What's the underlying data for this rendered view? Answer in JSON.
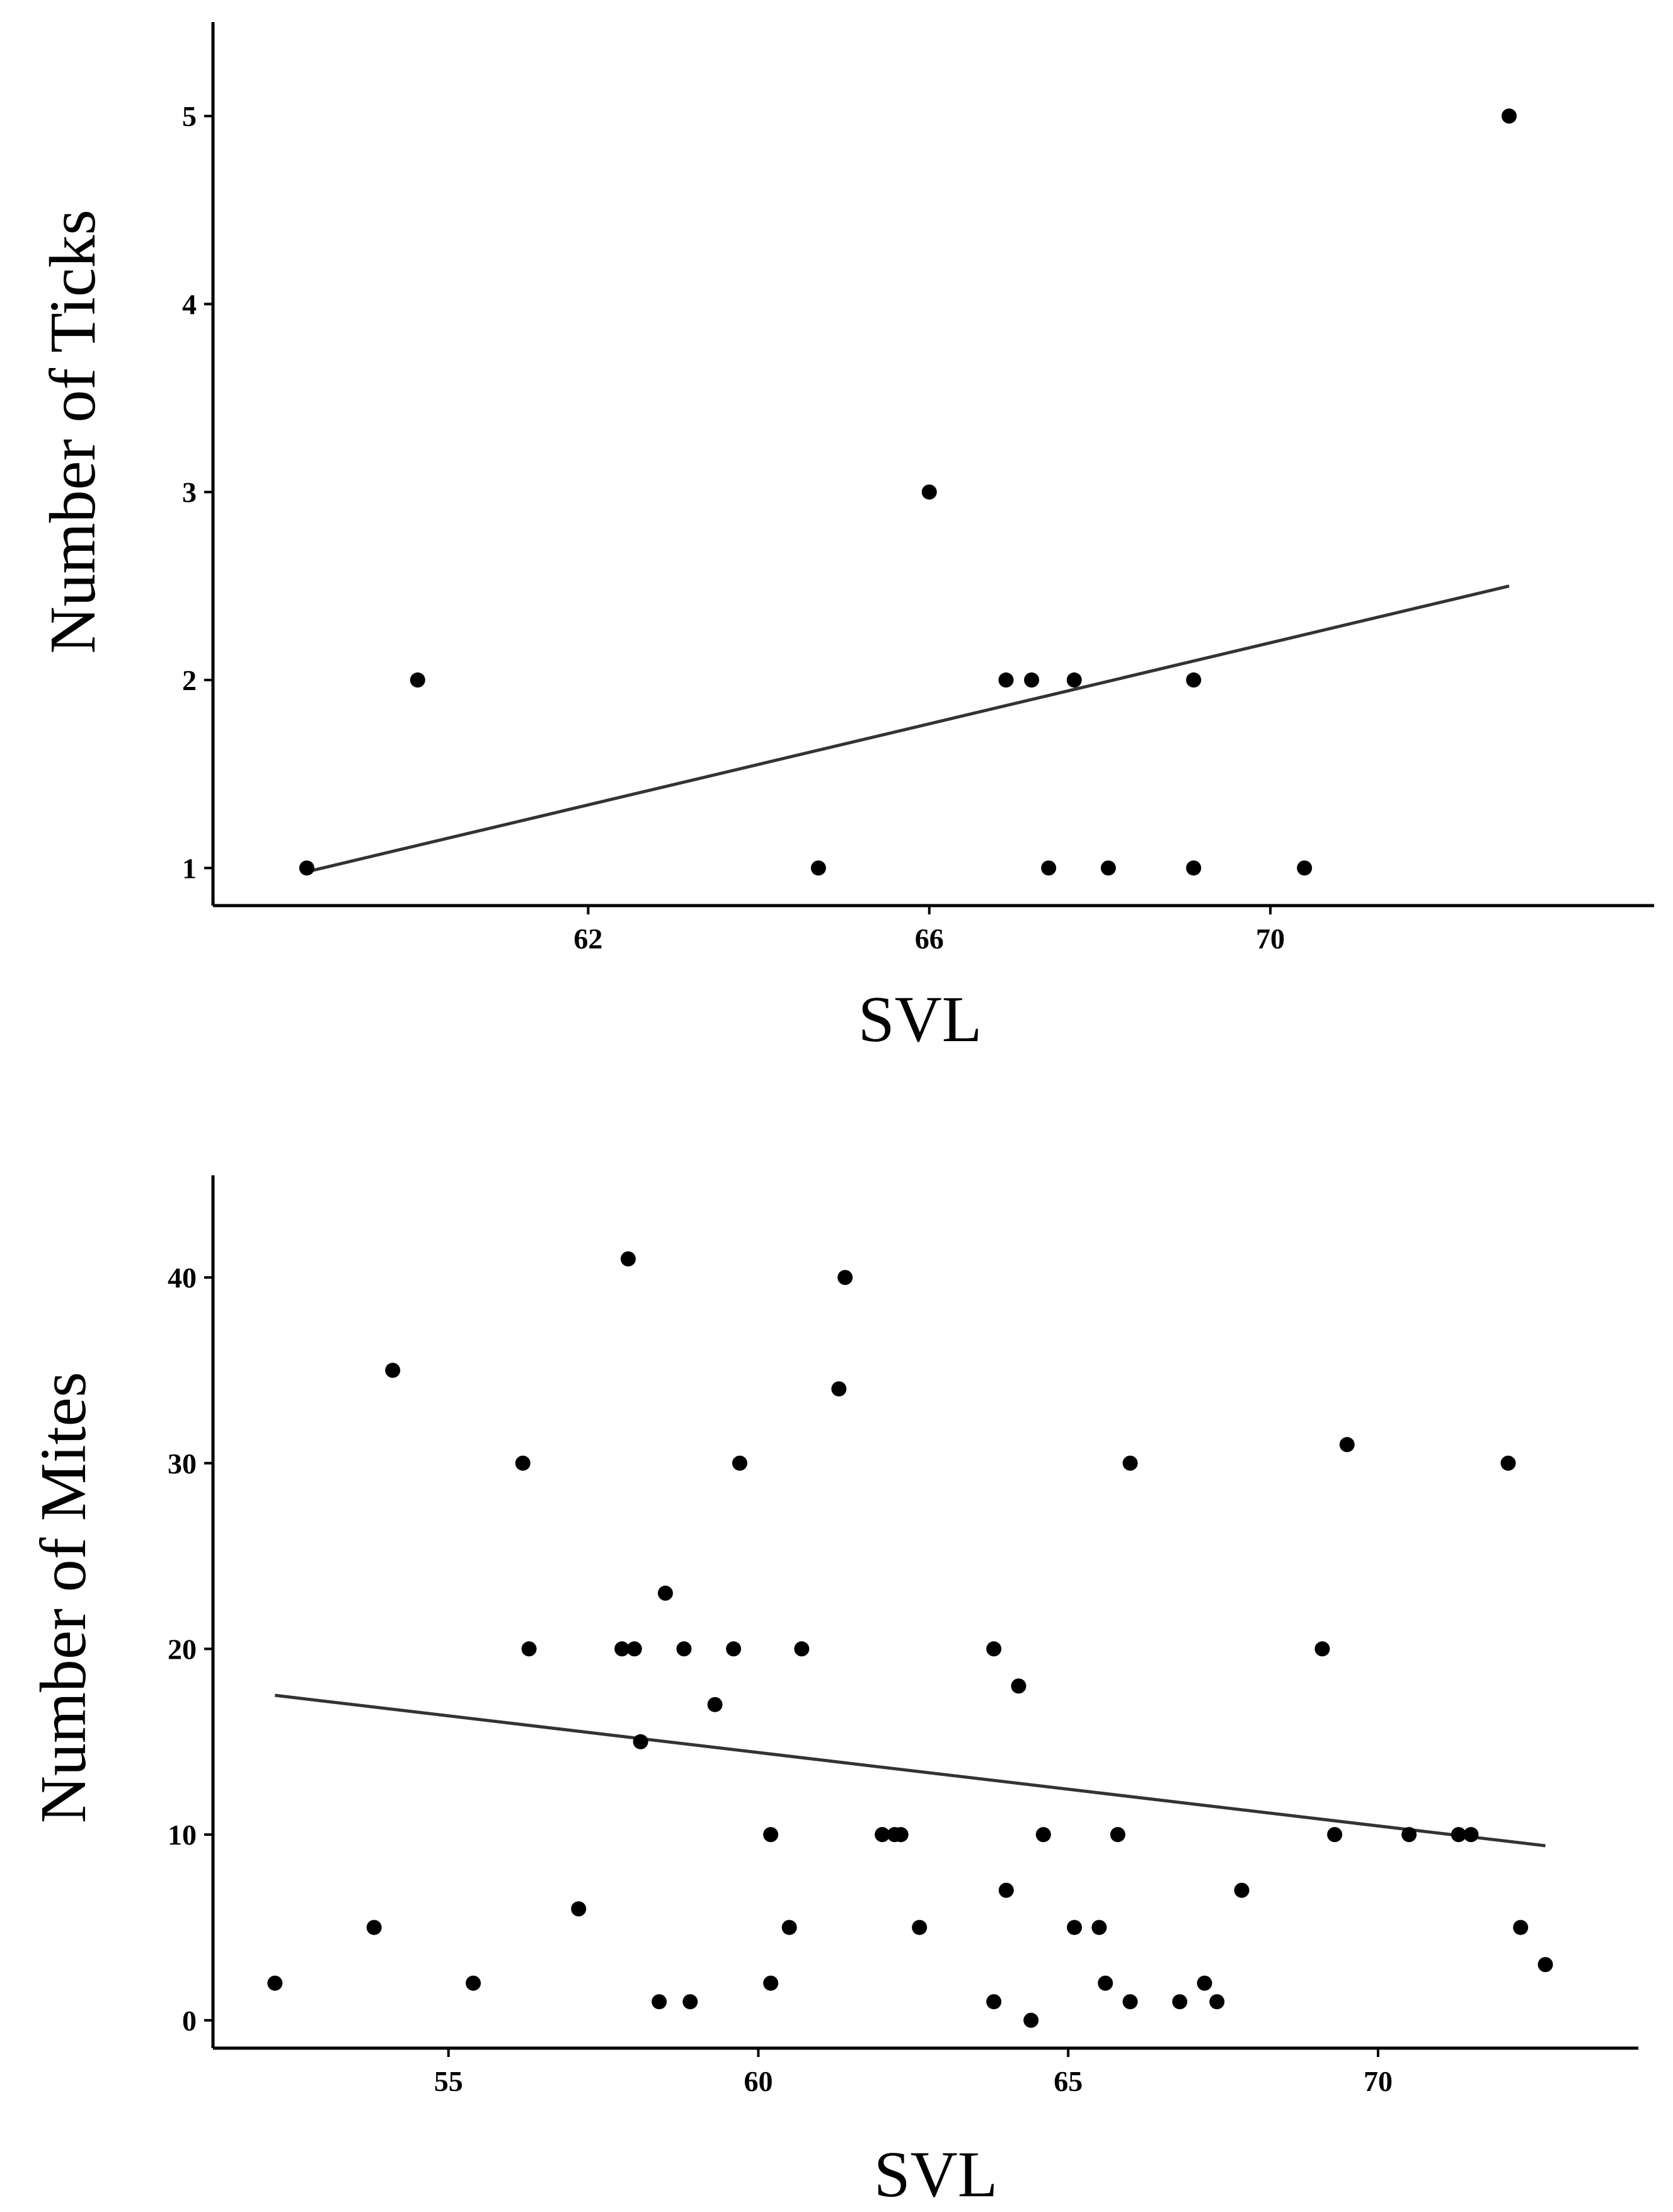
{
  "chart_data": [
    {
      "type": "scatter",
      "title": "",
      "xlabel": "SVL",
      "ylabel": "Number of Ticks",
      "xlim": [
        57.6,
        74.5
      ],
      "ylim": [
        0.8,
        5.5
      ],
      "xticks": [
        62,
        66,
        70
      ],
      "xtick_labels": [
        "62",
        "66",
        "70"
      ],
      "yticks": [
        1,
        2,
        3,
        4,
        5
      ],
      "ytick_labels": [
        "1",
        "2",
        "3",
        "4",
        "5"
      ],
      "grid": false,
      "points": [
        {
          "x": 58.7,
          "y": 1
        },
        {
          "x": 60.0,
          "y": 2
        },
        {
          "x": 64.7,
          "y": 1
        },
        {
          "x": 66.0,
          "y": 3
        },
        {
          "x": 66.9,
          "y": 2
        },
        {
          "x": 67.2,
          "y": 2
        },
        {
          "x": 67.4,
          "y": 1
        },
        {
          "x": 67.7,
          "y": 2
        },
        {
          "x": 68.1,
          "y": 1
        },
        {
          "x": 69.1,
          "y": 1
        },
        {
          "x": 69.1,
          "y": 2
        },
        {
          "x": 70.4,
          "y": 1
        },
        {
          "x": 72.8,
          "y": 5
        }
      ],
      "trend": {
        "x": [
          58.7,
          72.8
        ],
        "y": [
          0.98,
          2.5
        ]
      }
    },
    {
      "type": "scatter",
      "title": "",
      "xlabel": "SVL",
      "ylabel": "Number of Mites",
      "xlim": [
        51.2,
        74.2
      ],
      "ylim": [
        -1.5,
        45.5
      ],
      "xticks": [
        55,
        60,
        65,
        70
      ],
      "xtick_labels": [
        "55",
        "60",
        "65",
        "70"
      ],
      "yticks": [
        0,
        10,
        20,
        30,
        40
      ],
      "ytick_labels": [
        "0",
        "10",
        "20",
        "30",
        "40"
      ],
      "grid": false,
      "points": [
        {
          "x": 52.2,
          "y": 2
        },
        {
          "x": 53.8,
          "y": 5
        },
        {
          "x": 54.1,
          "y": 35
        },
        {
          "x": 55.4,
          "y": 2
        },
        {
          "x": 56.2,
          "y": 30
        },
        {
          "x": 56.3,
          "y": 20
        },
        {
          "x": 57.1,
          "y": 6
        },
        {
          "x": 57.8,
          "y": 20
        },
        {
          "x": 57.9,
          "y": 41
        },
        {
          "x": 58.0,
          "y": 20
        },
        {
          "x": 58.1,
          "y": 15
        },
        {
          "x": 58.4,
          "y": 1
        },
        {
          "x": 58.5,
          "y": 23
        },
        {
          "x": 58.8,
          "y": 20
        },
        {
          "x": 58.9,
          "y": 1
        },
        {
          "x": 59.3,
          "y": 17
        },
        {
          "x": 59.6,
          "y": 20
        },
        {
          "x": 59.7,
          "y": 30
        },
        {
          "x": 60.2,
          "y": 10
        },
        {
          "x": 60.2,
          "y": 2
        },
        {
          "x": 60.5,
          "y": 5
        },
        {
          "x": 60.7,
          "y": 20
        },
        {
          "x": 61.3,
          "y": 34
        },
        {
          "x": 61.4,
          "y": 40
        },
        {
          "x": 62.0,
          "y": 10
        },
        {
          "x": 62.2,
          "y": 10
        },
        {
          "x": 62.3,
          "y": 10
        },
        {
          "x": 62.6,
          "y": 5
        },
        {
          "x": 63.8,
          "y": 20
        },
        {
          "x": 63.8,
          "y": 1
        },
        {
          "x": 64.0,
          "y": 7
        },
        {
          "x": 64.2,
          "y": 18
        },
        {
          "x": 64.4,
          "y": 0
        },
        {
          "x": 64.6,
          "y": 10
        },
        {
          "x": 65.1,
          "y": 5
        },
        {
          "x": 65.5,
          "y": 5
        },
        {
          "x": 65.6,
          "y": 2
        },
        {
          "x": 65.8,
          "y": 10
        },
        {
          "x": 66.0,
          "y": 30
        },
        {
          "x": 66.0,
          "y": 1
        },
        {
          "x": 66.8,
          "y": 1
        },
        {
          "x": 67.2,
          "y": 2
        },
        {
          "x": 67.4,
          "y": 1
        },
        {
          "x": 67.8,
          "y": 7
        },
        {
          "x": 69.1,
          "y": 20
        },
        {
          "x": 69.3,
          "y": 10
        },
        {
          "x": 69.5,
          "y": 31
        },
        {
          "x": 70.5,
          "y": 10
        },
        {
          "x": 71.3,
          "y": 10
        },
        {
          "x": 71.5,
          "y": 10
        },
        {
          "x": 72.1,
          "y": 30
        },
        {
          "x": 72.3,
          "y": 5
        },
        {
          "x": 72.7,
          "y": 3
        }
      ],
      "trend": {
        "x": [
          52.2,
          72.7
        ],
        "y": [
          17.5,
          9.4
        ]
      }
    }
  ]
}
